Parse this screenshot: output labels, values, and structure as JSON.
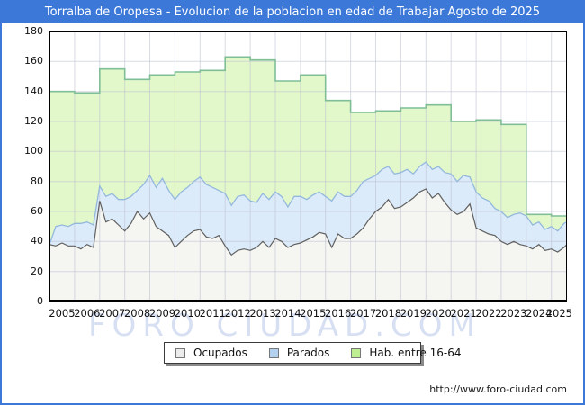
{
  "window": {
    "title": "Torralba de Oropesa - Evolucion de la poblacion en edad de Trabajar Agosto de 2025"
  },
  "watermark": {
    "text": "FORO CIUDAD.COM"
  },
  "footer": {
    "url": "http://www.foro-ciudad.com"
  },
  "colors": {
    "frame_blue": "#3b78d8",
    "grid": "#b9bdd0",
    "ocupados_fill": "#f5f5f2",
    "ocupados_line": "#606060",
    "parados_fill": "#dcebfa",
    "parados_line": "#94b8dc",
    "hab_fill": "#e2f8cb",
    "hab_line": "#7fbe97"
  },
  "legend": {
    "items": [
      {
        "label": "Ocupados",
        "swatch": "#ececec"
      },
      {
        "label": "Parados",
        "swatch": "#b4d2f0"
      },
      {
        "label": "Hab. entre 16-64",
        "swatch": "#bdee92"
      }
    ]
  },
  "chart_data": {
    "type": "area",
    "title": "Torralba de Oropesa - Evolucion de la poblacion en edad de Trabajar Agosto de 2025",
    "xlabel": "",
    "ylabel": "",
    "xlim": [
      2005,
      2025.62
    ],
    "ylim": [
      0,
      180
    ],
    "grid": true,
    "legend_position": "bottom",
    "yticks": [
      0,
      20,
      40,
      60,
      80,
      100,
      120,
      140,
      160,
      180
    ],
    "xticks": [
      2005,
      2006,
      2007,
      2008,
      2009,
      2010,
      2011,
      2012,
      2013,
      2014,
      2015,
      2016,
      2017,
      2018,
      2019,
      2020,
      2021,
      2022,
      2023,
      2024,
      2025
    ],
    "sampling_note": "Ocupados and Parados sampled quarterly Jan 2005 - Aug 2025; Parados series is the stacked top line (Ocupados+Parados). Hab. entre 16-64 is annual (step).",
    "x_start": 2005,
    "x_step_years": 0.25,
    "x_end": 2025.62,
    "series": [
      {
        "name": "Ocupados",
        "kind": "quarterly",
        "values": [
          38,
          37,
          39,
          37,
          37,
          35,
          38,
          36,
          67,
          53,
          55,
          51,
          47,
          52,
          60,
          55,
          59,
          50,
          47,
          44,
          36,
          40,
          44,
          47,
          48,
          43,
          42,
          44,
          37,
          31,
          34,
          35,
          34,
          36,
          40,
          36,
          42,
          40,
          36,
          38,
          39,
          41,
          43,
          46,
          45,
          36,
          45,
          42,
          42,
          45,
          49,
          55,
          60,
          63,
          68,
          62,
          63,
          66,
          69,
          73,
          75,
          69,
          72,
          66,
          61,
          58,
          60,
          65,
          49,
          47,
          45,
          44,
          40,
          38,
          40,
          38,
          37,
          35,
          38,
          34,
          35,
          33,
          36,
          38
        ]
      },
      {
        "name": "Parados",
        "kind": "quarterly",
        "represents": "stacked top (Ocupados + Parados)",
        "values": [
          38,
          50,
          51,
          50,
          52,
          52,
          53,
          51,
          77,
          70,
          72,
          68,
          68,
          70,
          74,
          78,
          84,
          76,
          82,
          74,
          68,
          73,
          76,
          80,
          83,
          78,
          76,
          74,
          72,
          64,
          70,
          71,
          67,
          66,
          72,
          68,
          73,
          70,
          63,
          70,
          70,
          68,
          71,
          73,
          70,
          67,
          73,
          70,
          70,
          74,
          80,
          82,
          84,
          88,
          90,
          85,
          86,
          88,
          85,
          90,
          93,
          88,
          90,
          86,
          85,
          80,
          84,
          83,
          73,
          69,
          67,
          62,
          60,
          56,
          58,
          59,
          57,
          51,
          53,
          48,
          50,
          47,
          52,
          53
        ]
      },
      {
        "name": "Hab. entre 16-64",
        "kind": "annual_step",
        "years": [
          2005,
          2006,
          2007,
          2008,
          2009,
          2010,
          2011,
          2012,
          2013,
          2014,
          2015,
          2016,
          2017,
          2018,
          2019,
          2020,
          2021,
          2022,
          2023,
          2024,
          2025
        ],
        "values": [
          140,
          139,
          155,
          148,
          151,
          153,
          154,
          163,
          161,
          147,
          151,
          134,
          126,
          127,
          129,
          131,
          120,
          121,
          118,
          58,
          57
        ]
      }
    ]
  }
}
